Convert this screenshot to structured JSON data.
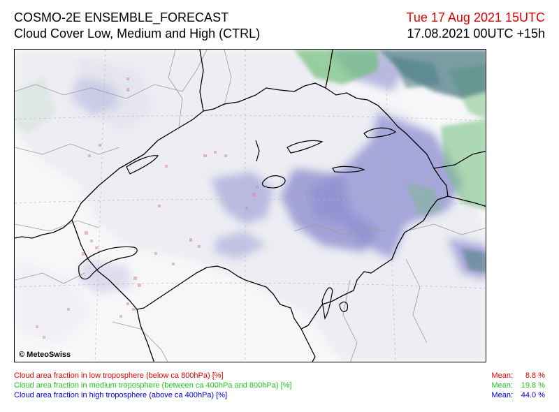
{
  "header": {
    "model": "COSMO-2E ENSEMBLE_FORECAST",
    "product": "Cloud Cover Low, Medium and High (CTRL)",
    "valid_time": "Tue 17 Aug 2021 15UTC",
    "run_info": "17.08.2021 00UTC +15h"
  },
  "map": {
    "copyright": "© MeteoSwiss",
    "colors": {
      "low_cloud": "#d98a8a",
      "medium_cloud": "#6fbf7a",
      "high_cloud": "#8e8fd0",
      "dense_cloud": "#4f7f86",
      "background_cloud": "#ececf1"
    }
  },
  "legend": [
    {
      "label": "Cloud area fraction in low troposphere (below ca 800hPa) [%]",
      "mean_label": "Mean:",
      "mean_value": "8.8 %",
      "color": "#e00000"
    },
    {
      "label": "Cloud area fraction in medium troposphere (between ca 400hPa and 800hPa) [%]",
      "mean_label": "Mean:",
      "mean_value": "19.8 %",
      "color": "#1ec81e"
    },
    {
      "label": "Cloud area fraction in high troposphere (above ca 400hPa) [%]",
      "mean_label": "Mean:",
      "mean_value": "44.0 %",
      "color": "#0000e0"
    }
  ]
}
